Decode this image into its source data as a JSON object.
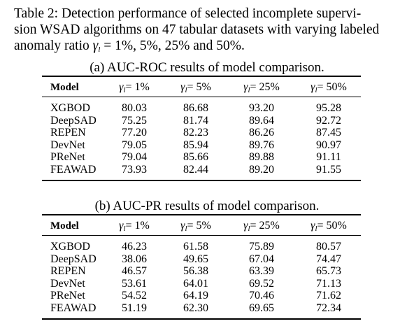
{
  "caption": {
    "line1": "Table 2: Detection performance of selected incomplete supervi-",
    "line2": "sion WSAD algorithms on 47 tabular datasets with varying labeled",
    "line3_pre": "anomaly ratio ",
    "line3_gamma": "γ",
    "line3_sub": "l",
    "line3_post": " = 1%, 5%, 25% and 50%."
  },
  "tables": [
    {
      "subcaption": "(a) AUC-ROC results of model comparison.",
      "header": {
        "model": "Model",
        "sym": "γ",
        "sub": "l",
        "ratios": [
          "= 1%",
          "= 5%",
          "= 25%",
          "= 50%"
        ]
      },
      "rows": [
        {
          "model": "XGBOD",
          "values": [
            "80.03",
            "86.68",
            "93.20",
            "95.28"
          ]
        },
        {
          "model": "DeepSAD",
          "values": [
            "75.25",
            "81.74",
            "89.64",
            "92.72"
          ]
        },
        {
          "model": "REPEN",
          "values": [
            "77.20",
            "82.23",
            "86.26",
            "87.45"
          ]
        },
        {
          "model": "DevNet",
          "values": [
            "79.05",
            "85.94",
            "89.76",
            "90.97"
          ]
        },
        {
          "model": "PReNet",
          "values": [
            "79.04",
            "85.66",
            "89.88",
            "91.11"
          ]
        },
        {
          "model": "FEAWAD",
          "values": [
            "73.93",
            "82.44",
            "89.20",
            "91.55"
          ]
        }
      ]
    },
    {
      "subcaption": "(b) AUC-PR results of model comparison.",
      "header": {
        "model": "Model",
        "sym": "γ",
        "sub": "l",
        "ratios": [
          "= 1%",
          "= 5%",
          "= 25%",
          "= 50%"
        ]
      },
      "rows": [
        {
          "model": "XGBOD",
          "values": [
            "46.23",
            "61.58",
            "75.89",
            "80.57"
          ]
        },
        {
          "model": "DeepSAD",
          "values": [
            "38.06",
            "49.65",
            "67.04",
            "74.47"
          ]
        },
        {
          "model": "REPEN",
          "values": [
            "46.57",
            "56.38",
            "63.39",
            "65.73"
          ]
        },
        {
          "model": "DevNet",
          "values": [
            "53.61",
            "64.01",
            "69.52",
            "71.13"
          ]
        },
        {
          "model": "PReNet",
          "values": [
            "54.52",
            "64.19",
            "70.46",
            "71.62"
          ]
        },
        {
          "model": "FEAWAD",
          "values": [
            "51.19",
            "62.30",
            "69.65",
            "72.34"
          ]
        }
      ]
    }
  ]
}
